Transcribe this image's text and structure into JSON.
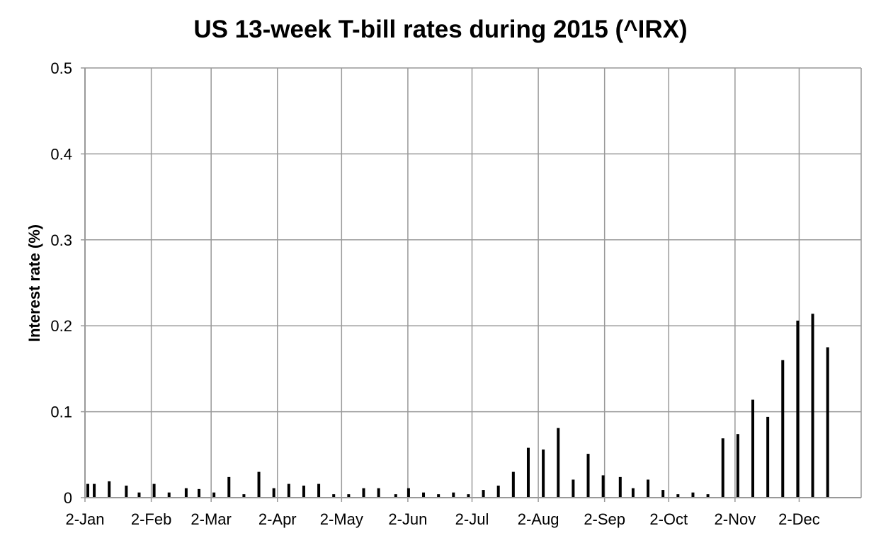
{
  "chart_data": {
    "type": "bar",
    "title": "US 13-week T-bill rates during 2015 (^IRX)",
    "xlabel": "",
    "ylabel": "Interest rate (%)",
    "ylim": [
      0,
      0.5
    ],
    "yticks": [
      "0",
      "0.1",
      "0.2",
      "0.3",
      "0.4",
      "0.5"
    ],
    "xlim": [
      "2015-01-02",
      "2015-12-31"
    ],
    "xticks": [
      {
        "date": "2015-01-02",
        "label": "2-Jan"
      },
      {
        "date": "2015-02-02",
        "label": "2-Feb"
      },
      {
        "date": "2015-03-02",
        "label": "2-Mar"
      },
      {
        "date": "2015-04-02",
        "label": "2-Apr"
      },
      {
        "date": "2015-05-02",
        "label": "2-May"
      },
      {
        "date": "2015-06-02",
        "label": "2-Jun"
      },
      {
        "date": "2015-07-02",
        "label": "2-Jul"
      },
      {
        "date": "2015-08-02",
        "label": "2-Aug"
      },
      {
        "date": "2015-09-02",
        "label": "2-Sep"
      },
      {
        "date": "2015-10-02",
        "label": "2-Oct"
      },
      {
        "date": "2015-11-02",
        "label": "2-Nov"
      },
      {
        "date": "2015-12-02",
        "label": "2-Dec"
      }
    ],
    "grid": true,
    "bar_color": "#000000",
    "grid_color": "#999999",
    "x": [
      "2015-01-02",
      "2015-01-05",
      "2015-01-12",
      "2015-01-20",
      "2015-01-26",
      "2015-02-02",
      "2015-02-09",
      "2015-02-17",
      "2015-02-23",
      "2015-03-02",
      "2015-03-09",
      "2015-03-16",
      "2015-03-23",
      "2015-03-30",
      "2015-04-06",
      "2015-04-13",
      "2015-04-20",
      "2015-04-27",
      "2015-05-04",
      "2015-05-11",
      "2015-05-18",
      "2015-05-26",
      "2015-06-01",
      "2015-06-08",
      "2015-06-15",
      "2015-06-22",
      "2015-06-29",
      "2015-07-06",
      "2015-07-13",
      "2015-07-20",
      "2015-07-27",
      "2015-08-03",
      "2015-08-10",
      "2015-08-17",
      "2015-08-24",
      "2015-08-31",
      "2015-09-08",
      "2015-09-14",
      "2015-09-21",
      "2015-09-28",
      "2015-10-05",
      "2015-10-12",
      "2015-10-19",
      "2015-10-26",
      "2015-11-02",
      "2015-11-09",
      "2015-11-16",
      "2015-11-23",
      "2015-11-30",
      "2015-12-07",
      "2015-12-14"
    ],
    "values": [
      0.016,
      0.016,
      0.019,
      0.014,
      0.006,
      0.016,
      0.006,
      0.011,
      0.01,
      0.006,
      0.024,
      0.004,
      0.03,
      0.011,
      0.016,
      0.014,
      0.016,
      0.004,
      0.004,
      0.011,
      0.011,
      0.004,
      0.011,
      0.006,
      0.004,
      0.006,
      0.004,
      0.009,
      0.014,
      0.03,
      0.058,
      0.056,
      0.081,
      0.021,
      0.051,
      0.026,
      0.024,
      0.011,
      0.021,
      0.009,
      0.004,
      0.006,
      0.004,
      0.069,
      0.074,
      0.114,
      0.094,
      0.16,
      0.206,
      0.214,
      0.175
    ]
  }
}
